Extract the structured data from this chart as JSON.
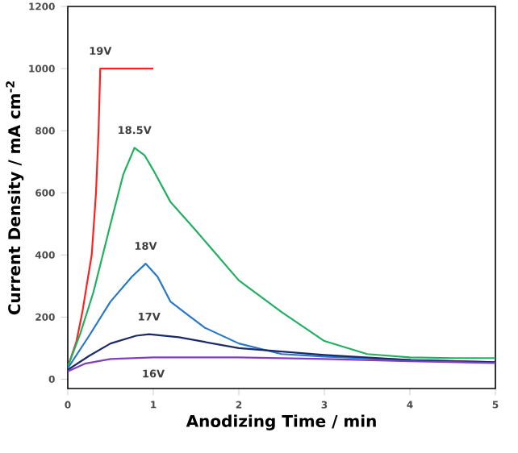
{
  "chart_data": {
    "type": "line",
    "xlabel": "Anodizing Time / min",
    "ylabel": "Current Density / mA cm$^{-2}$",
    "xlim": [
      0,
      5
    ],
    "ylim": [
      -30,
      1200
    ],
    "xticks": [
      0,
      1,
      2,
      3,
      4,
      5
    ],
    "yticks": [
      0,
      200,
      400,
      600,
      800,
      1000,
      1200
    ],
    "grid": false,
    "marker": "none",
    "line_style": "solid",
    "series": [
      {
        "name": "19V",
        "color": "#ff2020",
        "x": [
          0,
          0.1,
          0.17,
          0.22,
          0.28,
          0.33,
          0.36,
          0.37,
          0.38,
          1.0
        ],
        "values": [
          40,
          120,
          215,
          300,
          400,
          600,
          800,
          900,
          1000,
          1000
        ]
      },
      {
        "name": "18.5V",
        "color": "#20b060",
        "x": [
          0,
          0.15,
          0.3,
          0.5,
          0.65,
          0.78,
          0.9,
          1.0,
          1.2,
          1.5,
          2.0,
          2.5,
          3.0,
          3.5,
          4.0,
          4.5,
          5.0
        ],
        "values": [
          40,
          150,
          280,
          500,
          660,
          745,
          720,
          673,
          571,
          478,
          318,
          216,
          123,
          81,
          70,
          68,
          68
        ]
      },
      {
        "name": "18V",
        "color": "#2878c8",
        "x": [
          0,
          0.25,
          0.5,
          0.75,
          0.91,
          1.05,
          1.2,
          1.4,
          1.6,
          2.0,
          2.5,
          3.0,
          4.0,
          5.0
        ],
        "values": [
          35,
          140,
          250,
          330,
          372,
          330,
          250,
          208,
          166,
          115,
          81,
          73,
          62,
          55
        ]
      },
      {
        "name": "17V",
        "color": "#1a2a6a",
        "x": [
          0,
          0.25,
          0.5,
          0.8,
          0.95,
          1.3,
          1.6,
          2.0,
          3.0,
          4.0,
          5.0
        ],
        "values": [
          30,
          75,
          115,
          140,
          145,
          135,
          120,
          100,
          78,
          62,
          55
        ]
      },
      {
        "name": "16V",
        "color": "#8040c0",
        "x": [
          0,
          0.2,
          0.5,
          1.0,
          2.0,
          3.0,
          4.0,
          5.0
        ],
        "values": [
          25,
          50,
          65,
          70,
          70,
          65,
          58,
          52
        ]
      }
    ]
  }
}
